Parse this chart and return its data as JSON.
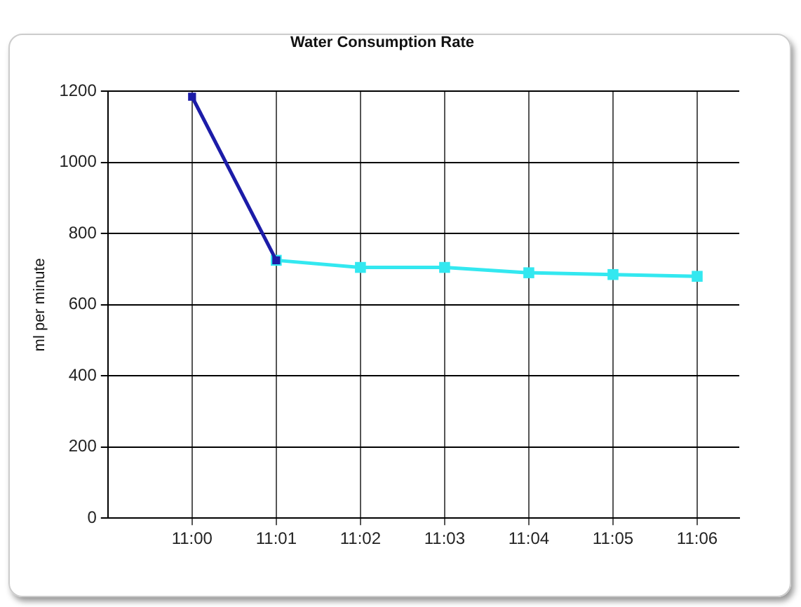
{
  "chart_data": {
    "type": "line",
    "title": "Water Consumption Rate",
    "ylabel": "ml per minute",
    "categories": [
      "11:00",
      "11:01",
      "11:02",
      "11:03",
      "11:04",
      "11:05",
      "11:06"
    ],
    "series": [
      {
        "color": "#1c1ca8",
        "values": [
          1185,
          725,
          null,
          null,
          null,
          null,
          null
        ]
      },
      {
        "color": "#33e8f0",
        "values": [
          null,
          725,
          705,
          705,
          690,
          685,
          680
        ]
      }
    ],
    "ylim": [
      0,
      1200
    ],
    "yticks": [
      0,
      200,
      400,
      600,
      800,
      1000,
      1200
    ],
    "grid": true,
    "legend": false,
    "marker": "square",
    "line_style": "solid"
  }
}
